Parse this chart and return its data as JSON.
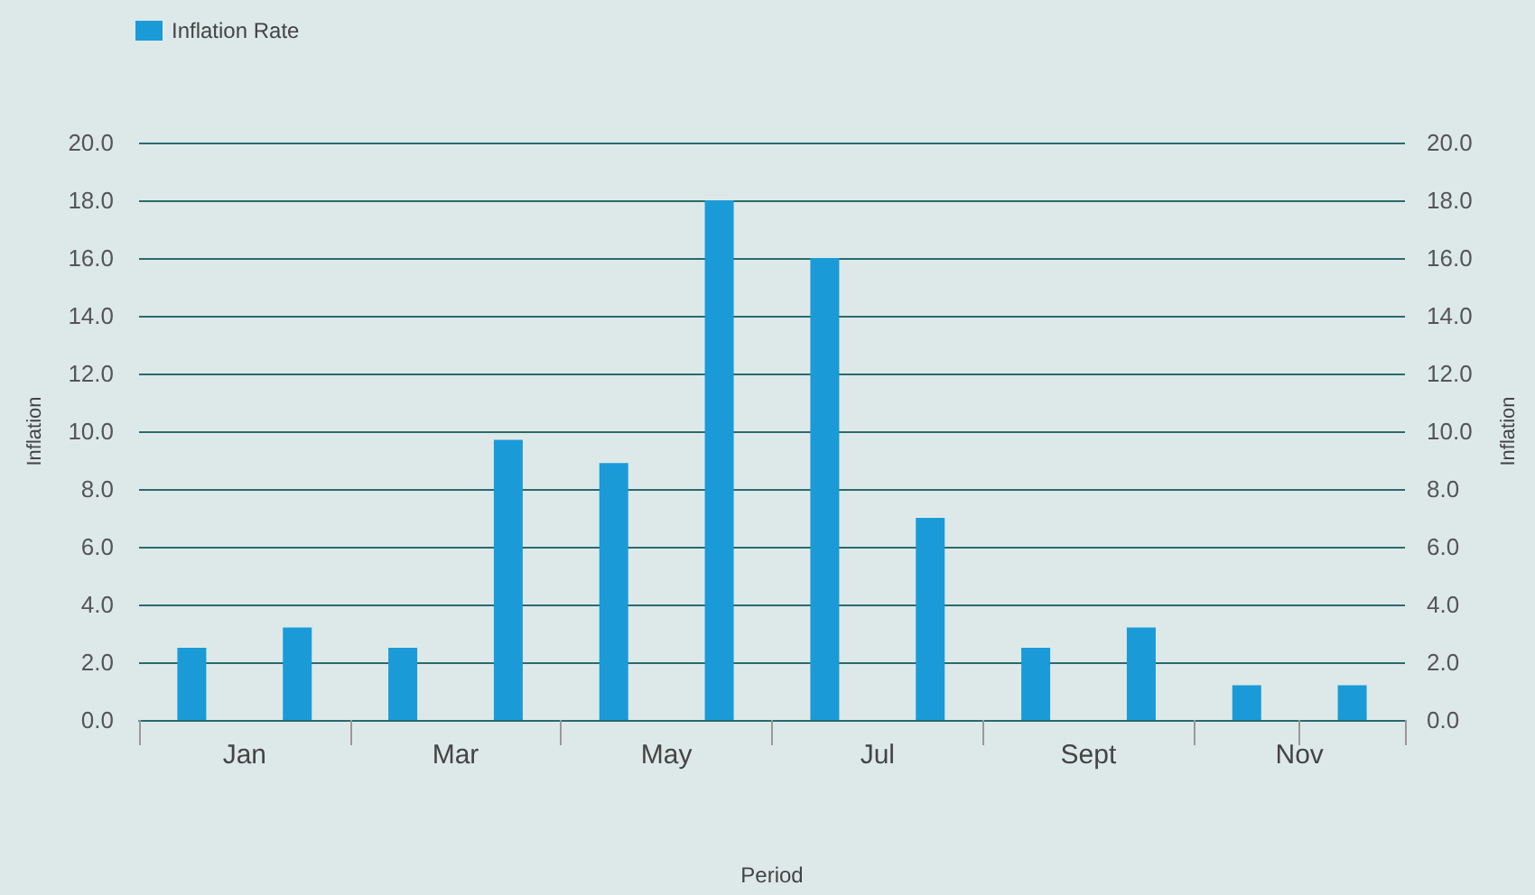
{
  "chart_data": {
    "type": "bar",
    "xlabel": "Period",
    "ylabel": "Inflation",
    "y2label": "Inflation",
    "categories": [
      "Jan",
      null,
      "Mar",
      null,
      "May",
      null,
      "Jul",
      null,
      "Sept",
      null,
      "Nov",
      null
    ],
    "series": [
      {
        "name": "Inflation Rate",
        "color": "#1a9bd7",
        "values": [
          2.5,
          3.2,
          2.5,
          9.7,
          8.9,
          18.0,
          16.0,
          7.0,
          2.5,
          3.2,
          1.2,
          1.2
        ]
      }
    ],
    "ylim": [
      0,
      20
    ],
    "yticks": [
      {
        "value": 0,
        "label": "0.0"
      },
      {
        "value": 2,
        "label": "2.0"
      },
      {
        "value": 4,
        "label": "4.0"
      },
      {
        "value": 6,
        "label": "6.0"
      },
      {
        "value": 8,
        "label": "8.0"
      },
      {
        "value": 10,
        "label": "10.0"
      },
      {
        "value": 12,
        "label": "12.0"
      },
      {
        "value": 14,
        "label": "14.0"
      },
      {
        "value": 16,
        "label": "16.0"
      },
      {
        "value": 18,
        "label": "18.0"
      },
      {
        "value": 20,
        "label": "20.0"
      }
    ],
    "y2lim": [
      0,
      20
    ],
    "y2ticks": [
      {
        "value": 0,
        "label": "0.0"
      },
      {
        "value": 2,
        "label": "2.0"
      },
      {
        "value": 4,
        "label": "4.0"
      },
      {
        "value": 6,
        "label": "6.0"
      },
      {
        "value": 8,
        "label": "8.0"
      },
      {
        "value": 10,
        "label": "10.0"
      },
      {
        "value": 12,
        "label": "12.0"
      },
      {
        "value": 14,
        "label": "14.0"
      },
      {
        "value": 16,
        "label": "16.0"
      },
      {
        "value": 18,
        "label": "18.0"
      },
      {
        "value": 20,
        "label": "20.0"
      }
    ],
    "grid": "y",
    "legend": "top left"
  }
}
